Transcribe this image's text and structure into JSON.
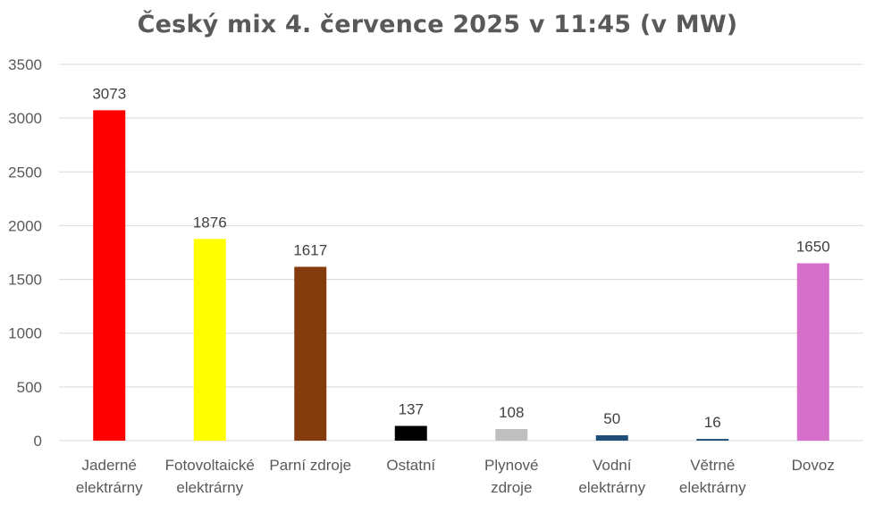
{
  "chart_data": {
    "type": "bar",
    "title": "Český mix 4. července 2025 v 11:45 (v MW)",
    "categories": [
      [
        "Jaderné",
        "elektrárny"
      ],
      [
        "Fotovoltaické",
        "elektrárny"
      ],
      [
        "Parní zdroje"
      ],
      [
        "Ostatní"
      ],
      [
        "Plynové",
        "zdroje"
      ],
      [
        "Vodní",
        "elektrárny"
      ],
      [
        "Větrné",
        "elektrárny"
      ],
      [
        "Dovoz"
      ]
    ],
    "values": [
      3073,
      1876,
      1617,
      137,
      108,
      50,
      16,
      1650
    ],
    "data_labels": [
      "3073",
      "1876",
      "1617",
      "137",
      "108",
      "50",
      "16",
      "1650"
    ],
    "colors": [
      "#ff0000",
      "#ffff00",
      "#843c0c",
      "#000000",
      "#bfbfbf",
      "#1f4e79",
      "#1f4e79",
      "#d56fc9"
    ],
    "ylim": [
      0,
      3500
    ],
    "yticks": [
      "0",
      "500",
      "1000",
      "1500",
      "2000",
      "2500",
      "3000",
      "3500"
    ],
    "grid": true,
    "legend": "none",
    "xlabel": "",
    "ylabel": ""
  }
}
